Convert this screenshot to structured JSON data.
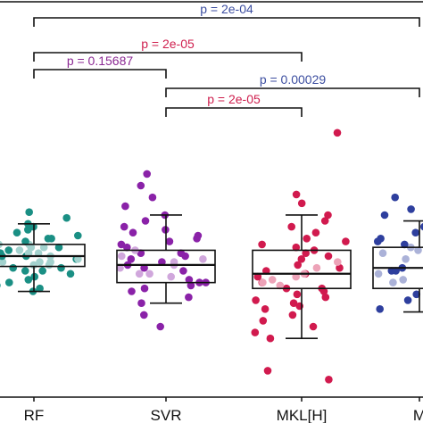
{
  "chart_data": {
    "type": "box",
    "categories": [
      "RF",
      "SVR",
      "MKL[H]",
      "M"
    ],
    "series": [
      {
        "category": "RF",
        "box": {
          "whisker_low": 0.2,
          "q1": 0.285,
          "median": 0.32,
          "q3": 0.36,
          "whisker_high": 0.43
        },
        "points": [
          0.2,
          0.21,
          0.22,
          0.23,
          0.24,
          0.25,
          0.25,
          0.26,
          0.27,
          0.27,
          0.28,
          0.28,
          0.29,
          0.29,
          0.3,
          0.3,
          0.3,
          0.31,
          0.31,
          0.31,
          0.32,
          0.32,
          0.32,
          0.33,
          0.33,
          0.33,
          0.34,
          0.34,
          0.34,
          0.35,
          0.35,
          0.35,
          0.36,
          0.36,
          0.37,
          0.37,
          0.38,
          0.38,
          0.39,
          0.4,
          0.41,
          0.42,
          0.43,
          0.45,
          0.47
        ]
      },
      {
        "category": "SVR",
        "box": {
          "whisker_low": 0.16,
          "q1": 0.23,
          "median": 0.29,
          "q3": 0.34,
          "whisker_high": 0.46
        },
        "points": [
          0.08,
          0.12,
          0.16,
          0.18,
          0.2,
          0.21,
          0.22,
          0.23,
          0.23,
          0.24,
          0.25,
          0.26,
          0.26,
          0.27,
          0.28,
          0.28,
          0.29,
          0.29,
          0.3,
          0.3,
          0.31,
          0.31,
          0.32,
          0.32,
          0.33,
          0.33,
          0.34,
          0.35,
          0.36,
          0.37,
          0.38,
          0.39,
          0.4,
          0.41,
          0.42,
          0.44,
          0.46,
          0.49,
          0.52,
          0.56,
          0.6
        ]
      },
      {
        "category": "MKL[H]",
        "box": {
          "whisker_low": 0.04,
          "q1": 0.21,
          "median": 0.26,
          "q3": 0.34,
          "whisker_high": 0.46
        },
        "points": [
          -0.1,
          -0.07,
          0.04,
          0.06,
          0.08,
          0.1,
          0.12,
          0.14,
          0.15,
          0.16,
          0.17,
          0.18,
          0.19,
          0.2,
          0.21,
          0.21,
          0.22,
          0.23,
          0.23,
          0.24,
          0.25,
          0.25,
          0.26,
          0.26,
          0.27,
          0.28,
          0.28,
          0.29,
          0.3,
          0.31,
          0.32,
          0.33,
          0.34,
          0.35,
          0.36,
          0.37,
          0.38,
          0.4,
          0.42,
          0.44,
          0.46,
          0.5,
          0.53,
          0.74
        ]
      },
      {
        "category": "M",
        "box": {
          "whisker_low": 0.13,
          "q1": 0.21,
          "median": 0.28,
          "q3": 0.35,
          "whisker_high": 0.44
        },
        "points": [
          0.1,
          0.14,
          0.17,
          0.19,
          0.2,
          0.21,
          0.22,
          0.23,
          0.24,
          0.25,
          0.26,
          0.27,
          0.27,
          0.28,
          0.29,
          0.3,
          0.31,
          0.32,
          0.33,
          0.34,
          0.35,
          0.36,
          0.37,
          0.38,
          0.39,
          0.4,
          0.42,
          0.44,
          0.46,
          0.48,
          0.52
        ]
      }
    ],
    "comparisons": [
      {
        "from": "RF",
        "to": "M",
        "label": "p = 2e-04"
      },
      {
        "from": "RF",
        "to": "MKL[H]",
        "label": "p = 2e-05"
      },
      {
        "from": "RF",
        "to": "SVR",
        "label": "p = 0.15687"
      },
      {
        "from": "SVR",
        "to": "M",
        "label": "p = 0.00029"
      },
      {
        "from": "SVR",
        "to": "MKL[H]",
        "label": "p = 2e-05"
      }
    ],
    "ylim": [
      -0.16,
      1.18
    ],
    "grid": false
  },
  "colors": {
    "RF": "#1a8f84",
    "SVR": "#8a22a8",
    "MKL[H]": "#d11a4e",
    "M": "#2e3f9e",
    "p_blue": "#3c4ea0",
    "p_purple": "#8b2a94",
    "p_red": "#cf1f4e",
    "axis": "#111111"
  }
}
